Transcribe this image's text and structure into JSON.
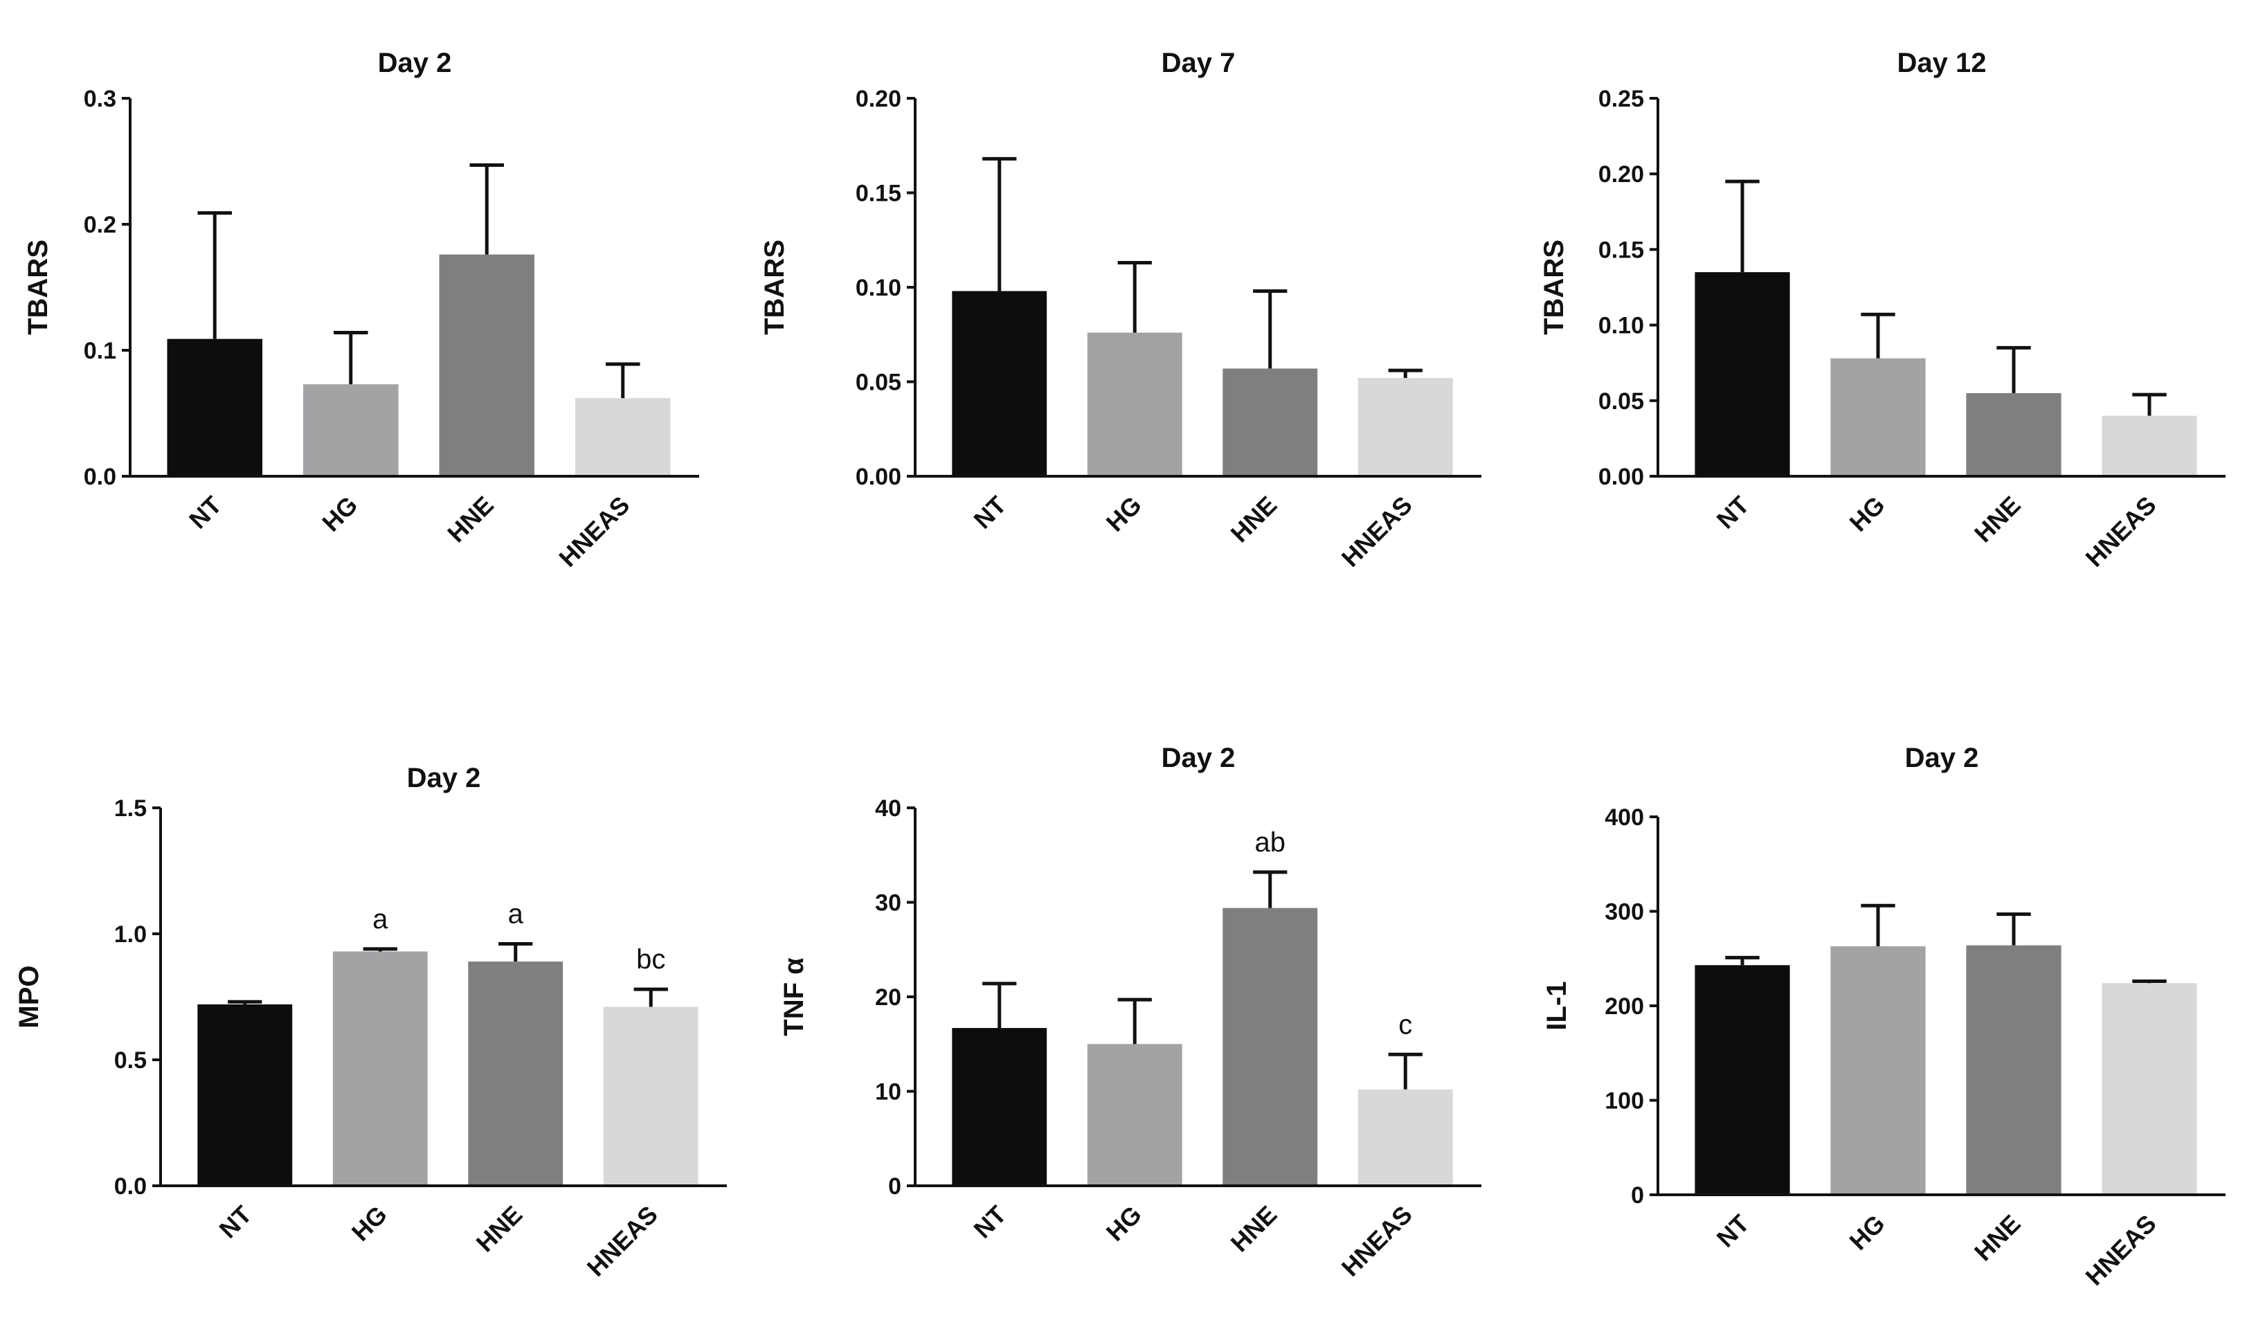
{
  "figure": {
    "colors": {
      "NT": "#0d0d0d",
      "HG": "#a3a3a6",
      "HNE": "#7f7f80",
      "HNEAS": "#d8d8d8"
    }
  },
  "chart_data": [
    {
      "type": "bar",
      "title": "Day 2",
      "xlabel": "",
      "ylabel": "TBARS",
      "categories": [
        "NT",
        "HG",
        "HNE",
        "HNEAS"
      ],
      "values": [
        0.109,
        0.073,
        0.176,
        0.062
      ],
      "errors": [
        0.1,
        0.041,
        0.071,
        0.027
      ],
      "annotations": [
        "",
        "",
        "",
        ""
      ],
      "ylim": [
        0,
        0.3
      ],
      "yticks": [
        0,
        0.1,
        0.2,
        0.3
      ],
      "ytick_labels": [
        "0.0",
        "0.1",
        "0.2",
        "0.3"
      ]
    },
    {
      "type": "bar",
      "title": "Day 7",
      "xlabel": "",
      "ylabel": "TBARS",
      "categories": [
        "NT",
        "HG",
        "HNE",
        "HNEAS"
      ],
      "values": [
        0.098,
        0.076,
        0.057,
        0.052
      ],
      "errors": [
        0.07,
        0.037,
        0.041,
        0.004
      ],
      "annotations": [
        "",
        "",
        "",
        ""
      ],
      "ylim": [
        0,
        0.2
      ],
      "yticks": [
        0,
        0.05,
        0.1,
        0.15,
        0.2
      ],
      "ytick_labels": [
        "0.00",
        "0.05",
        "0.10",
        "0.15",
        "0.20"
      ]
    },
    {
      "type": "bar",
      "title": "Day 12",
      "xlabel": "",
      "ylabel": "TBARS",
      "categories": [
        "NT",
        "HG",
        "HNE",
        "HNEAS"
      ],
      "values": [
        0.135,
        0.078,
        0.055,
        0.04
      ],
      "errors": [
        0.06,
        0.029,
        0.03,
        0.014
      ],
      "annotations": [
        "",
        "",
        "",
        ""
      ],
      "ylim": [
        0,
        0.25
      ],
      "yticks": [
        0,
        0.05,
        0.1,
        0.15,
        0.2,
        0.25
      ],
      "ytick_labels": [
        "0.00",
        "0.05",
        "0.10",
        "0.15",
        "0.20",
        "0.25"
      ]
    },
    {
      "type": "bar",
      "title": "Day 2",
      "xlabel": "",
      "ylabel": "MPO",
      "categories": [
        "NT",
        "HG",
        "HNE",
        "HNEAS"
      ],
      "values": [
        0.72,
        0.93,
        0.89,
        0.71
      ],
      "errors": [
        0.01,
        0.01,
        0.07,
        0.07
      ],
      "annotations": [
        "",
        "a",
        "a",
        "bc"
      ],
      "ylim": [
        0,
        1.5
      ],
      "yticks": [
        0,
        0.5,
        1.0,
        1.5
      ],
      "ytick_labels": [
        "0.0",
        "0.5",
        "1.0",
        "1.5"
      ]
    },
    {
      "type": "bar",
      "title": "Day 2",
      "xlabel": "",
      "ylabel": "TNF α",
      "categories": [
        "NT",
        "HG",
        "HNE",
        "HNEAS"
      ],
      "values": [
        16.7,
        15.0,
        29.4,
        10.2
      ],
      "errors": [
        4.7,
        4.7,
        3.8,
        3.7
      ],
      "annotations": [
        "",
        "",
        "ab",
        "c"
      ],
      "ylim": [
        0,
        40
      ],
      "yticks": [
        0,
        10,
        20,
        30,
        40
      ],
      "ytick_labels": [
        "0",
        "10",
        "20",
        "30",
        "40"
      ]
    },
    {
      "type": "bar",
      "title": "Day 2",
      "xlabel": "",
      "ylabel": "IL-1",
      "categories": [
        "NT",
        "HG",
        "HNE",
        "HNEAS"
      ],
      "values": [
        243,
        263,
        264,
        224
      ],
      "errors": [
        8,
        43,
        33,
        2
      ],
      "annotations": [
        "",
        "",
        "",
        ""
      ],
      "ylim": [
        0,
        400
      ],
      "yticks": [
        0,
        100,
        200,
        300,
        400
      ],
      "ytick_labels": [
        "0",
        "100",
        "200",
        "300",
        "400"
      ]
    }
  ]
}
